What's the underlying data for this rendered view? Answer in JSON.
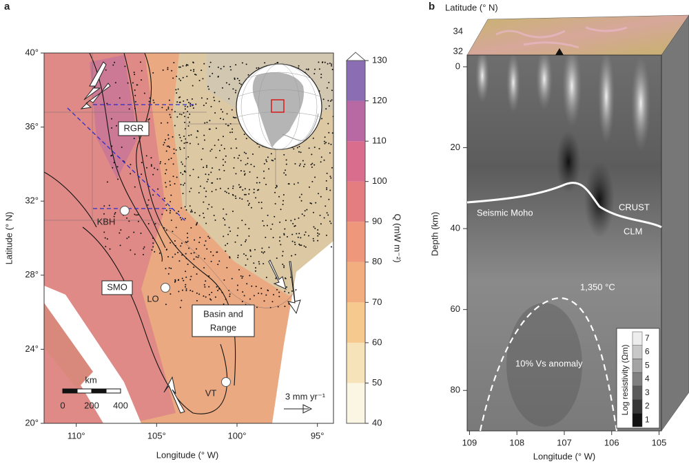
{
  "panel_a": {
    "label": "a",
    "xlabel": "Longitude (° W)",
    "ylabel": "Latitude (° N)",
    "xlim": [
      112,
      94
    ],
    "ylim": [
      20,
      40
    ],
    "xticks": [
      {
        "value": 110,
        "label": "110°"
      },
      {
        "value": 105,
        "label": "105°"
      },
      {
        "value": 100,
        "label": "100°"
      },
      {
        "value": 95,
        "label": "95°"
      }
    ],
    "yticks": [
      {
        "value": 40,
        "label": "40°"
      },
      {
        "value": 36,
        "label": "36°"
      },
      {
        "value": 32,
        "label": "32°"
      },
      {
        "value": 28,
        "label": "28°"
      },
      {
        "value": 24,
        "label": "24°"
      },
      {
        "value": 20,
        "label": "20°"
      }
    ],
    "regions": {
      "rgr": "RGR",
      "smo": "SMO",
      "basin_range": [
        "Basin and",
        "Range"
      ]
    },
    "sites": {
      "kbh": "KBH",
      "lo": "LO",
      "vt": "VT"
    },
    "scale_bar": {
      "unit": "km",
      "ticks": [
        0,
        200,
        400
      ]
    },
    "velocity_label": "3 mm yr⁻¹",
    "colorbar": {
      "label": "Q (mW m⁻²)",
      "lim": [
        40,
        130
      ],
      "ticks": [
        40,
        50,
        60,
        70,
        80,
        90,
        100,
        110,
        120,
        130
      ],
      "colors": [
        "#fbf6e3",
        "#f6e3b9",
        "#f6c98f",
        "#f3ae80",
        "#ee977a",
        "#e47d7f",
        "#d86d8d",
        "#b868a2",
        "#8a6db3"
      ]
    }
  },
  "panel_b": {
    "label": "b",
    "lat_label": "Latitude (° N)",
    "lat_ticks": [
      "34",
      "32"
    ],
    "ylabel": "Depth (km)",
    "ylim": [
      0,
      90
    ],
    "yticks": [
      0,
      20,
      40,
      60,
      80
    ],
    "xlabel": "Longitude (° W)",
    "xlim": [
      109.05,
      104.95
    ],
    "xticks": [
      109,
      108,
      107,
      106,
      105
    ],
    "annotations": {
      "moho": "Seismic Moho",
      "crust": "CRUST",
      "clm": "CLM",
      "isotherm": "1,350 °C",
      "anomaly": "10% Vs anomaly"
    },
    "legend": {
      "label": "Log resistivity (Ωm)",
      "lim": [
        0.5,
        7.5
      ],
      "ticks": [
        1,
        2,
        3,
        4,
        5,
        6,
        7
      ]
    }
  }
}
